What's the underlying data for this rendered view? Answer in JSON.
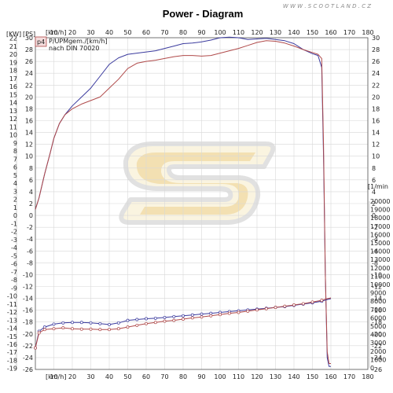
{
  "header": {
    "title": "Power - Diagram",
    "watermark": "W W W . S C O O T L A N D . C Z"
  },
  "legend": {
    "badge": "p4",
    "line1": "P/UPMgem./[km/h]",
    "line2": "nach DIN 70020"
  },
  "axes": {
    "top_unit": "[km/h]",
    "bottom_unit": "[km/h]",
    "left_unit_kw": "[KW]",
    "left_unit_ps": "[PS]",
    "right_unit_rpm": "[1/min",
    "speed_ticks": [
      "0",
      "10",
      "20",
      "30",
      "40",
      "50",
      "60",
      "70",
      "80",
      "90",
      "100",
      "110",
      "120",
      "130",
      "140",
      "150",
      "160",
      "170",
      "180"
    ],
    "kw_ticks": [
      "22",
      "21",
      "20",
      "19",
      "18",
      "17",
      "16",
      "15",
      "14",
      "13",
      "12",
      "11",
      "10",
      "9",
      "8",
      "7",
      "6",
      "5",
      "4",
      "3",
      "2",
      "1",
      "0",
      "-1",
      "-2",
      "-3",
      "-4",
      "-5",
      "-6",
      "-7",
      "-8",
      "-9",
      "-10",
      "-11",
      "-12",
      "-13",
      "-14",
      "-15",
      "-16",
      "-17",
      "-18",
      "-19"
    ],
    "ps_ticks": [
      "30",
      "28",
      "26",
      "24",
      "22",
      "20",
      "18",
      "16",
      "14",
      "12",
      "10",
      "8",
      "6",
      "4",
      "2",
      "0",
      "-2",
      "-4",
      "-6",
      "-8",
      "-10",
      "-12",
      "-14",
      "-16",
      "-18",
      "-20",
      "-22",
      "-24",
      "-26"
    ],
    "rpm_ticks": [
      "20000",
      "19000",
      "18000",
      "17000",
      "16000",
      "15000",
      "14000",
      "13000",
      "12000",
      "11000",
      "10000",
      "9000",
      "8000",
      "7000",
      "6000",
      "5000",
      "4000",
      "3000",
      "2000",
      "1000",
      "0"
    ]
  },
  "chart_data": {
    "type": "line",
    "title": "Power - Diagram",
    "x_unit": "[km/h]",
    "xlim": [
      0,
      180
    ],
    "y_left_units": [
      "[KW]",
      "[PS]"
    ],
    "ylim_ps": [
      -26,
      30
    ],
    "ylim_rpm": [
      0,
      20000
    ],
    "grid": true,
    "series": [
      {
        "axis": "ps",
        "color": "#3b3b9e",
        "x": [
          0,
          2,
          5,
          8,
          10,
          13,
          16,
          20,
          25,
          30,
          35,
          40,
          45,
          50,
          55,
          60,
          65,
          70,
          75,
          80,
          85,
          90,
          95,
          100,
          105,
          110,
          115,
          120,
          125,
          130,
          135,
          140,
          145,
          150,
          153,
          155,
          156,
          157,
          158,
          159,
          160
        ],
        "y": [
          1,
          3,
          7,
          10.5,
          13,
          15.5,
          17,
          18.5,
          20,
          21.5,
          23.5,
          25.5,
          26.6,
          27.2,
          27.4,
          27.6,
          27.8,
          28.2,
          28.6,
          29,
          29.1,
          29.3,
          29.6,
          30,
          30.1,
          30,
          29.7,
          29.8,
          29.9,
          29.7,
          29.5,
          29,
          28,
          27.3,
          27,
          25,
          10,
          -10,
          -24,
          -25.5,
          -25.5
        ]
      },
      {
        "axis": "ps",
        "color": "#b04a4a",
        "x": [
          0,
          2,
          5,
          8,
          10,
          13,
          16,
          20,
          25,
          30,
          35,
          40,
          45,
          50,
          55,
          60,
          65,
          70,
          75,
          80,
          85,
          90,
          95,
          100,
          105,
          110,
          115,
          120,
          125,
          130,
          135,
          140,
          145,
          150,
          153,
          155,
          156,
          157,
          158,
          159,
          160
        ],
        "y": [
          1,
          3,
          7,
          10.5,
          13,
          15.5,
          17,
          18,
          18.8,
          19.4,
          20,
          21.5,
          23,
          24.8,
          25.7,
          26,
          26.2,
          26.5,
          26.8,
          27,
          27,
          26.9,
          27,
          27.4,
          27.8,
          28.2,
          28.7,
          29.2,
          29.5,
          29.4,
          29.1,
          28.6,
          28,
          27.5,
          27.2,
          26.5,
          12,
          -10,
          -23,
          -25,
          -25
        ]
      },
      {
        "axis": "rpm",
        "color": "#3b3b9e",
        "x": [
          0,
          2,
          5,
          10,
          15,
          20,
          25,
          30,
          35,
          40,
          45,
          50,
          55,
          60,
          65,
          70,
          75,
          80,
          85,
          90,
          95,
          100,
          105,
          110,
          115,
          120,
          125,
          130,
          135,
          140,
          145,
          150,
          155,
          158,
          160
        ],
        "y": [
          2400,
          4400,
          4900,
          5250,
          5400,
          5450,
          5450,
          5400,
          5300,
          5200,
          5400,
          5700,
          5800,
          5900,
          5950,
          6050,
          6150,
          6250,
          6350,
          6450,
          6550,
          6650,
          6750,
          6850,
          6950,
          7050,
          7150,
          7250,
          7350,
          7500,
          7650,
          7800,
          8000,
          8200,
          8300
        ]
      },
      {
        "axis": "rpm",
        "color": "#b04a4a",
        "x": [
          0,
          2,
          5,
          10,
          15,
          20,
          25,
          30,
          35,
          40,
          45,
          50,
          55,
          60,
          65,
          70,
          75,
          80,
          85,
          90,
          95,
          100,
          105,
          110,
          115,
          120,
          125,
          130,
          135,
          140,
          145,
          150,
          155,
          158,
          160
        ],
        "y": [
          2400,
          4200,
          4600,
          4700,
          4800,
          4700,
          4650,
          4650,
          4600,
          4600,
          4700,
          4900,
          5100,
          5300,
          5450,
          5600,
          5700,
          5850,
          6000,
          6100,
          6250,
          6400,
          6550,
          6650,
          6800,
          6950,
          7100,
          7250,
          7400,
          7550,
          7700,
          7900,
          8100,
          8300,
          8400
        ]
      }
    ]
  }
}
